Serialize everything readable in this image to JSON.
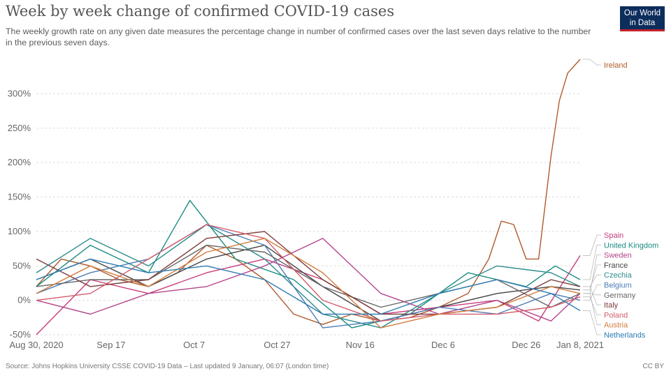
{
  "header": {
    "title": "Week by week change of confirmed COVID-19 cases",
    "subtitle": "The weekly growth rate on any given date measures the percentage change in number of confirmed cases over the last seven days relative to the number in the previous seven days.",
    "logo_line1": "Our World",
    "logo_line2": "in Data",
    "logo_bg": "#0d2d5c",
    "logo_accent": "#c5202b"
  },
  "footer": {
    "source": "Source: Johns Hopkins University CSSE COVID-19 Data – Last updated 9 January, 06:07 (London time)",
    "license": "CC BY"
  },
  "chart_data": {
    "type": "line",
    "title": "Week by week change of confirmed COVID-19 cases",
    "xlabel": "",
    "ylabel": "",
    "x_range": [
      "2020-08-30",
      "2021-01-08"
    ],
    "ylim": [
      -50,
      350
    ],
    "y_ticks": [
      -50,
      0,
      50,
      100,
      150,
      200,
      250,
      300
    ],
    "y_tick_labels": [
      "-50%",
      "0%",
      "50%",
      "100%",
      "150%",
      "200%",
      "250%",
      "300%"
    ],
    "x_ticks": [
      "2020-08-30",
      "2020-09-17",
      "2020-10-07",
      "2020-10-27",
      "2020-11-16",
      "2020-12-06",
      "2020-12-26",
      "2021-01-08"
    ],
    "x_tick_labels": [
      "Aug 30, 2020",
      "Sep 17",
      "Oct 7",
      "Oct 27",
      "Nov 16",
      "Dec 6",
      "Dec 26",
      "Jan 8, 2021"
    ],
    "grid": "horizontal dashed",
    "legend": "right",
    "series": [
      {
        "name": "Ireland",
        "color": "#b05a2c",
        "x": [
          "2020-08-30",
          "2020-09-05",
          "2020-09-12",
          "2020-09-19",
          "2020-09-26",
          "2020-10-03",
          "2020-10-10",
          "2020-10-17",
          "2020-10-24",
          "2020-10-31",
          "2020-11-07",
          "2020-11-14",
          "2020-11-21",
          "2020-11-28",
          "2020-12-05",
          "2020-12-12",
          "2020-12-17",
          "2020-12-20",
          "2020-12-23",
          "2020-12-26",
          "2020-12-29",
          "2021-01-01",
          "2021-01-03",
          "2021-01-05",
          "2021-01-08"
        ],
        "y": [
          20,
          60,
          50,
          30,
          20,
          40,
          80,
          60,
          30,
          -20,
          -35,
          -20,
          -30,
          -25,
          -10,
          10,
          60,
          115,
          110,
          60,
          60,
          210,
          290,
          330,
          350
        ]
      },
      {
        "name": "Spain",
        "color": "#c83c7c",
        "x": [
          "2020-08-30",
          "2020-09-12",
          "2020-09-26",
          "2020-10-10",
          "2020-10-24",
          "2020-11-07",
          "2020-11-21",
          "2020-12-05",
          "2020-12-19",
          "2020-12-29",
          "2021-01-08"
        ],
        "y": [
          -50,
          30,
          10,
          40,
          60,
          30,
          -20,
          -10,
          0,
          -30,
          65
        ]
      },
      {
        "name": "United Kingdom",
        "color": "#1a8c80",
        "x": [
          "2020-08-30",
          "2020-09-12",
          "2020-09-26",
          "2020-10-06",
          "2020-10-17",
          "2020-10-31",
          "2020-11-14",
          "2020-11-28",
          "2020-12-12",
          "2020-12-26",
          "2021-01-02",
          "2021-01-08"
        ],
        "y": [
          20,
          80,
          40,
          145,
          60,
          30,
          -40,
          -20,
          40,
          20,
          50,
          30
        ]
      },
      {
        "name": "Sweden",
        "color": "#b4448c",
        "x": [
          "2020-08-30",
          "2020-09-12",
          "2020-09-26",
          "2020-10-10",
          "2020-10-24",
          "2020-11-07",
          "2020-11-21",
          "2020-12-05",
          "2020-12-19",
          "2021-01-01",
          "2021-01-08"
        ],
        "y": [
          0,
          -20,
          10,
          20,
          50,
          90,
          10,
          -20,
          0,
          -30,
          10
        ]
      },
      {
        "name": "France",
        "color": "#444444",
        "x": [
          "2020-08-30",
          "2020-09-12",
          "2020-09-26",
          "2020-10-10",
          "2020-10-24",
          "2020-11-07",
          "2020-11-21",
          "2020-12-05",
          "2020-12-19",
          "2021-01-01",
          "2021-01-08"
        ],
        "y": [
          30,
          60,
          20,
          60,
          80,
          20,
          -30,
          -10,
          10,
          20,
          15
        ]
      },
      {
        "name": "Czechia",
        "color": "#2c8c8c",
        "x": [
          "2020-08-30",
          "2020-09-12",
          "2020-09-26",
          "2020-10-10",
          "2020-10-24",
          "2020-11-07",
          "2020-11-21",
          "2020-12-05",
          "2020-12-19",
          "2021-01-01",
          "2021-01-08"
        ],
        "y": [
          40,
          90,
          50,
          110,
          60,
          -20,
          -40,
          10,
          50,
          40,
          20
        ]
      },
      {
        "name": "Belgium",
        "color": "#4c7cb4",
        "x": [
          "2020-08-30",
          "2020-09-12",
          "2020-09-26",
          "2020-10-10",
          "2020-10-24",
          "2020-11-07",
          "2020-11-21",
          "2020-12-05",
          "2020-12-19",
          "2021-01-01",
          "2021-01-08"
        ],
        "y": [
          10,
          40,
          60,
          110,
          80,
          -40,
          -30,
          -10,
          -20,
          10,
          0
        ]
      },
      {
        "name": "Germany",
        "color": "#666666",
        "x": [
          "2020-08-30",
          "2020-09-12",
          "2020-09-26",
          "2020-10-10",
          "2020-10-24",
          "2020-11-07",
          "2020-11-21",
          "2020-12-05",
          "2020-12-19",
          "2021-01-01",
          "2021-01-08"
        ],
        "y": [
          20,
          30,
          30,
          80,
          70,
          20,
          -10,
          10,
          30,
          -10,
          10
        ]
      },
      {
        "name": "Italy",
        "color": "#7a3c3c",
        "x": [
          "2020-08-30",
          "2020-09-12",
          "2020-09-26",
          "2020-10-10",
          "2020-10-24",
          "2020-11-07",
          "2020-11-21",
          "2020-12-05",
          "2020-12-19",
          "2021-01-01",
          "2021-01-08"
        ],
        "y": [
          60,
          20,
          30,
          90,
          100,
          30,
          -20,
          -20,
          -10,
          30,
          20
        ]
      },
      {
        "name": "Poland",
        "color": "#d45c6c",
        "x": [
          "2020-08-30",
          "2020-09-12",
          "2020-09-26",
          "2020-10-10",
          "2020-10-24",
          "2020-11-07",
          "2020-11-21",
          "2020-12-05",
          "2020-12-19",
          "2021-01-01",
          "2021-01-08"
        ],
        "y": [
          0,
          10,
          60,
          110,
          90,
          0,
          -30,
          -20,
          -20,
          -10,
          5
        ]
      },
      {
        "name": "Austria",
        "color": "#d27c3c",
        "x": [
          "2020-08-30",
          "2020-09-12",
          "2020-09-26",
          "2020-10-10",
          "2020-10-24",
          "2020-11-07",
          "2020-11-21",
          "2020-12-05",
          "2020-12-19",
          "2021-01-01",
          "2021-01-08"
        ],
        "y": [
          10,
          50,
          20,
          70,
          90,
          40,
          -40,
          -20,
          -10,
          20,
          10
        ]
      },
      {
        "name": "Netherlands",
        "color": "#2c7cb4",
        "x": [
          "2020-08-30",
          "2020-09-12",
          "2020-09-26",
          "2020-10-10",
          "2020-10-24",
          "2020-11-07",
          "2020-11-21",
          "2020-12-05",
          "2020-12-19",
          "2021-01-01",
          "2021-01-08"
        ],
        "y": [
          30,
          60,
          40,
          50,
          30,
          -20,
          -20,
          10,
          30,
          10,
          -15
        ]
      }
    ]
  }
}
